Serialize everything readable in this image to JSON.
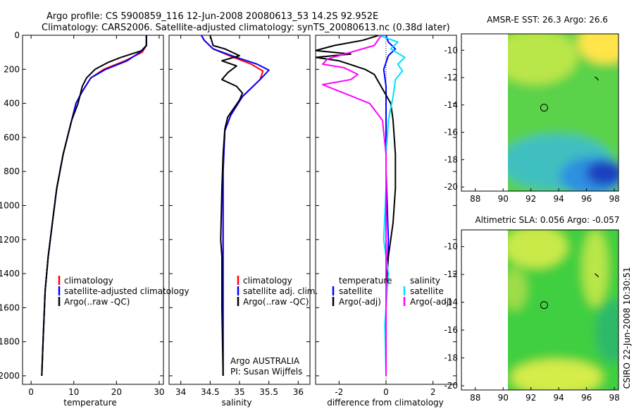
{
  "header": {
    "line1": "Argo profile: CS 5900859_116 12-Jun-2008 20080613_53 14.2S 92.952E",
    "line2": "Climatology: CARS2006. Satellite-adjusted climatology: synTS_20080613.nc (0.38d later)"
  },
  "side_label": "CSIRO 22-Jun-2008 10:30:51",
  "colors": {
    "red": "#ff0000",
    "blue": "#0000ff",
    "black": "#000000",
    "cyan": "#00e0ff",
    "magenta": "#ff00ff"
  },
  "chart_data": [
    {
      "type": "line",
      "id": "temperature",
      "xlabel": "temperature",
      "xlim": [
        -2,
        31
      ],
      "ylim": [
        2050,
        0
      ],
      "xticks": [
        0,
        10,
        20,
        30
      ],
      "yticks": [
        0,
        200,
        400,
        600,
        800,
        1000,
        1200,
        1400,
        1600,
        1800,
        2000
      ],
      "series": [
        {
          "name": "climatology",
          "color": "red",
          "x": [
            27,
            27,
            26,
            22,
            17,
            14,
            12,
            10.5,
            9.5,
            7.5,
            6,
            5,
            4,
            3.3,
            2.8,
            2.5
          ],
          "y": [
            0,
            60,
            100,
            150,
            200,
            250,
            330,
            400,
            500,
            700,
            900,
            1100,
            1300,
            1500,
            1800,
            2000
          ]
        },
        {
          "name": "satellite-adjusted climatology",
          "color": "blue",
          "x": [
            27,
            27,
            25.5,
            22.5,
            17.5,
            14,
            12,
            10.5,
            9.5,
            7.5,
            6,
            5,
            4,
            3.3,
            2.8,
            2.5
          ],
          "y": [
            0,
            60,
            100,
            150,
            200,
            250,
            330,
            400,
            500,
            700,
            900,
            1100,
            1300,
            1500,
            1800,
            2000
          ]
        },
        {
          "name": "Argo(..raw -QC)",
          "color": "black",
          "x": [
            27,
            27,
            26,
            21,
            18,
            15,
            13,
            12,
            11,
            9.5,
            7.5,
            6,
            5,
            4,
            3.3,
            2.8,
            2.5
          ],
          "y": [
            0,
            60,
            90,
            130,
            160,
            200,
            250,
            300,
            400,
            500,
            700,
            900,
            1100,
            1300,
            1500,
            1800,
            2000
          ]
        }
      ],
      "legend": [
        "climatology",
        "satellite-adjusted climatology",
        "Argo(..raw -QC)"
      ],
      "legend_colors": [
        "red",
        "blue",
        "black"
      ]
    },
    {
      "type": "line",
      "id": "salinity",
      "xlabel": "salinity",
      "xlim": [
        33.8,
        36.2
      ],
      "ylim": [
        2050,
        0
      ],
      "xticks": [
        34,
        34.5,
        35,
        35.5,
        36
      ],
      "series": [
        {
          "name": "climatology",
          "color": "red",
          "x": [
            34.35,
            34.4,
            34.55,
            34.9,
            35.2,
            35.4,
            35.35,
            35.05,
            34.85,
            34.75,
            34.72,
            34.72,
            34.72,
            34.72
          ],
          "y": [
            0,
            30,
            80,
            130,
            170,
            210,
            260,
            360,
            470,
            560,
            800,
            1200,
            1600,
            2000
          ]
        },
        {
          "name": "satellite adj. clim.",
          "color": "blue",
          "x": [
            34.35,
            34.4,
            34.55,
            34.95,
            35.3,
            35.5,
            35.35,
            35.05,
            34.85,
            34.75,
            34.72,
            34.72,
            34.72,
            34.72
          ],
          "y": [
            0,
            30,
            80,
            130,
            170,
            205,
            260,
            360,
            470,
            560,
            800,
            1200,
            1600,
            2000
          ]
        },
        {
          "name": "Argo(..raw -QC)",
          "color": "black",
          "x": [
            34.5,
            34.55,
            34.75,
            35.0,
            34.7,
            34.95,
            34.8,
            34.7,
            34.95,
            35.05,
            35.0,
            34.9,
            34.8,
            34.75,
            34.72,
            34.7,
            34.68,
            34.7,
            34.7,
            34.72
          ],
          "y": [
            0,
            60,
            80,
            120,
            150,
            180,
            220,
            260,
            300,
            340,
            380,
            430,
            480,
            550,
            700,
            900,
            1200,
            1300,
            1600,
            2000
          ]
        }
      ],
      "legend": [
        "climatology",
        "satellite adj. clim.",
        "Argo(..raw -QC)"
      ],
      "legend_colors": [
        "red",
        "blue",
        "black"
      ],
      "notes": [
        "Argo AUSTRALIA",
        "PI: Susan Wijffels"
      ]
    },
    {
      "type": "line",
      "id": "difference",
      "xlabel": "difference from climatology",
      "xlim": [
        -3,
        3
      ],
      "ylim": [
        2050,
        0
      ],
      "xticks": [
        -2,
        0,
        2
      ],
      "zero_line": true,
      "series": [
        {
          "name": "temperature satellite",
          "color": "blue",
          "x": [
            0,
            0.1,
            0.4,
            0.1,
            -0.1,
            0,
            0,
            0,
            0,
            0.1,
            0,
            0,
            0
          ],
          "y": [
            0,
            40,
            80,
            120,
            200,
            300,
            400,
            600,
            800,
            1200,
            1600,
            1800,
            2000
          ]
        },
        {
          "name": "temperature Argo(-adj)",
          "color": "black",
          "x": [
            -0.3,
            -1.0,
            -2.2,
            -3.0,
            -1.5,
            -3.0,
            -2.0,
            -0.9,
            -0.5,
            0.2,
            0.3,
            0.4,
            0.4,
            0.3,
            0.1,
            0,
            0,
            0,
            0
          ],
          "y": [
            0,
            30,
            60,
            90,
            110,
            130,
            150,
            200,
            230,
            400,
            500,
            700,
            900,
            1100,
            1300,
            1500,
            1700,
            1900,
            2000
          ]
        },
        {
          "name": "salinity satellite",
          "color": "cyan",
          "x": [
            -0.3,
            0.5,
            0.2,
            0.8,
            0.5,
            0.7,
            0.4,
            0.3,
            0.1,
            0,
            0,
            -0.1,
            0.1,
            -0.05,
            0
          ],
          "y": [
            0,
            40,
            80,
            130,
            170,
            210,
            260,
            360,
            500,
            700,
            900,
            1200,
            1400,
            1700,
            2000
          ]
        },
        {
          "name": "salinity Argo(-adj)",
          "color": "magenta",
          "x": [
            -0.2,
            -0.5,
            -1.5,
            -2.5,
            -2.7,
            -1.8,
            -1.2,
            -1.5,
            -2.7,
            -0.7,
            -0.15,
            0,
            0,
            0
          ],
          "y": [
            0,
            60,
            100,
            140,
            170,
            190,
            230,
            260,
            290,
            400,
            500,
            700,
            1200,
            2000
          ]
        }
      ],
      "legend_left_title": "temperature",
      "legend_right_title": "salinity",
      "legend_left": [
        "satellite",
        "Argo(-adj)"
      ],
      "legend_left_colors": [
        "blue",
        "black"
      ],
      "legend_right": [
        "satellite",
        "Argo(-adj)"
      ],
      "legend_right_colors": [
        "cyan",
        "magenta"
      ]
    },
    {
      "type": "heatmap",
      "id": "sst_map",
      "title": "AMSR-E SST: 26.3 Argo: 26.6",
      "xlim": [
        87,
        98.3
      ],
      "ylim": [
        -20.3,
        -8.8
      ],
      "xticks": [
        88,
        90,
        92,
        94,
        96,
        98
      ],
      "yticks": [
        -10,
        -12,
        -14,
        -16,
        -18,
        -20
      ],
      "data_extent_lon": [
        90,
        98
      ],
      "marker": {
        "lon": 92.95,
        "lat": -14.2
      },
      "track_end": {
        "lon": 96.8,
        "lat": -12.1
      }
    },
    {
      "type": "heatmap",
      "id": "sla_map",
      "title": "Altimetric SLA: 0.056 Argo: -0.057",
      "xlim": [
        87,
        98.3
      ],
      "ylim": [
        -20.3,
        -8.8
      ],
      "xticks": [
        88,
        90,
        92,
        94,
        96,
        98
      ],
      "yticks": [
        -10,
        -12,
        -14,
        -16,
        -18,
        -20
      ],
      "data_extent_lon": [
        90,
        98
      ],
      "marker": {
        "lon": 92.95,
        "lat": -14.2
      },
      "track_end": {
        "lon": 96.8,
        "lat": -12.1
      }
    }
  ]
}
